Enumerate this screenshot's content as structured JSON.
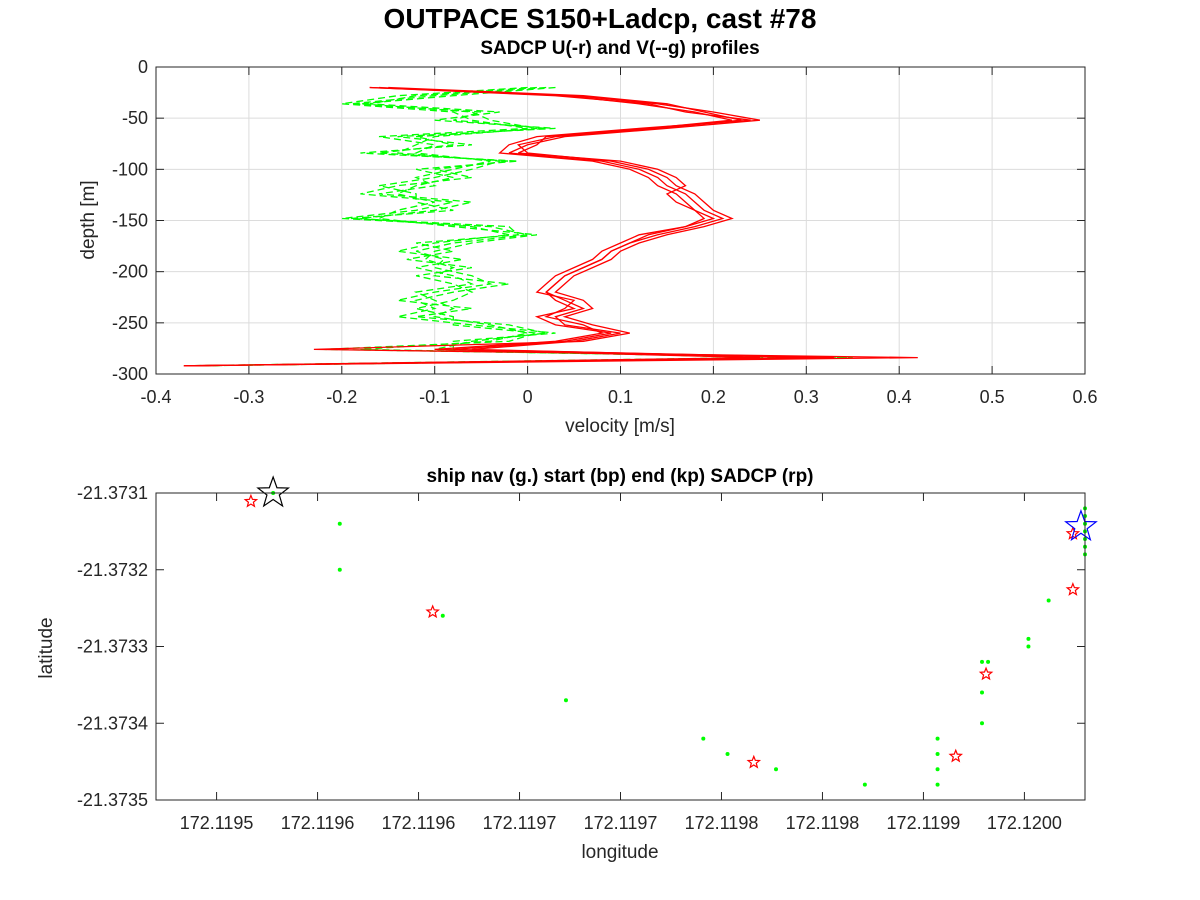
{
  "figure": {
    "title": "OUTPACE S150+Ladcp, cast #78"
  },
  "chart_data": [
    {
      "type": "line",
      "title": "SADCP U(-r) and V(--g) profiles",
      "xlabel": "velocity [m/s]",
      "ylabel": "depth [m]",
      "xlim": [
        -0.4,
        0.6
      ],
      "ylim": [
        -300,
        0
      ],
      "xticks": [
        -0.4,
        -0.3,
        -0.2,
        -0.1,
        0,
        0.1,
        0.2,
        0.3,
        0.4,
        0.5,
        0.6
      ],
      "xtick_labels": [
        "-0.4",
        "-0.3",
        "-0.2",
        "-0.1",
        "0",
        "0.1",
        "0.2",
        "0.3",
        "0.4",
        "0.5",
        "0.6"
      ],
      "yticks": [
        0,
        -50,
        -100,
        -150,
        -200,
        -250,
        -300
      ],
      "ytick_labels": [
        "0",
        "-50",
        "-100",
        "-150",
        "-200",
        "-250",
        "-300"
      ],
      "grid": true,
      "depths": [
        -20,
        -28,
        -36,
        -44,
        -52,
        -60,
        -68,
        -76,
        -84,
        -92,
        -100,
        -108,
        -116,
        -124,
        -132,
        -140,
        -148,
        -156,
        -164,
        -172,
        -180,
        -188,
        -196,
        -204,
        -212,
        -220,
        -228,
        -236,
        -244,
        -252,
        -260,
        -268,
        -276,
        -284,
        -292
      ],
      "series": [
        {
          "component": "U",
          "color": "#ff0000",
          "dash": "solid",
          "profiles": [
            [
              -0.17,
              0.05,
              0.14,
              0.2,
              0.25,
              0.15,
              0.04,
              0.0,
              -0.02,
              0.08,
              0.12,
              0.14,
              0.15,
              0.17,
              0.18,
              0.19,
              0.21,
              0.18,
              0.14,
              0.11,
              0.09,
              0.08,
              0.06,
              0.04,
              0.03,
              0.02,
              0.04,
              0.06,
              0.03,
              0.04,
              0.1,
              0.05,
              -0.06,
              0.3,
              -0.37
            ],
            [
              -0.16,
              0.04,
              0.12,
              0.18,
              0.22,
              0.13,
              0.02,
              0.01,
              -0.01,
              0.1,
              0.14,
              0.16,
              0.17,
              0.15,
              0.16,
              0.18,
              0.19,
              0.17,
              0.12,
              0.1,
              0.08,
              0.07,
              0.05,
              0.03,
              0.02,
              0.01,
              0.05,
              0.04,
              0.02,
              0.06,
              0.08,
              0.03,
              -0.1,
              0.25,
              -0.36
            ],
            [
              -0.15,
              0.06,
              0.15,
              0.19,
              0.23,
              0.14,
              0.03,
              -0.01,
              0.0,
              0.09,
              0.13,
              0.15,
              0.16,
              0.18,
              0.19,
              0.2,
              0.22,
              0.19,
              0.15,
              0.12,
              0.1,
              0.09,
              0.07,
              0.05,
              0.04,
              0.03,
              0.06,
              0.07,
              0.04,
              0.07,
              0.11,
              0.06,
              -0.23,
              0.42,
              -0.37
            ],
            [
              -0.17,
              0.03,
              0.13,
              0.17,
              0.24,
              0.12,
              0.01,
              -0.02,
              -0.03,
              0.07,
              0.11,
              0.13,
              0.14,
              0.16,
              0.17,
              0.18,
              0.2,
              0.17,
              0.13,
              0.11,
              0.09,
              0.08,
              0.06,
              0.04,
              0.03,
              0.02,
              0.03,
              0.05,
              0.01,
              0.03,
              0.09,
              0.04,
              -0.08,
              0.33,
              -0.37
            ]
          ]
        },
        {
          "component": "V",
          "color": "#00ff00",
          "dash": "dashed",
          "profiles": [
            [
              0.02,
              -0.1,
              -0.19,
              -0.05,
              -0.08,
              0.02,
              -0.12,
              -0.08,
              -0.16,
              -0.02,
              -0.1,
              -0.06,
              -0.14,
              -0.18,
              -0.08,
              -0.12,
              -0.2,
              -0.04,
              0.0,
              -0.08,
              -0.12,
              -0.09,
              -0.1,
              -0.06,
              -0.04,
              -0.1,
              -0.14,
              -0.06,
              -0.12,
              -0.02,
              0.02,
              -0.06,
              -0.1,
              0.33,
              -0.36
            ],
            [
              0.0,
              -0.14,
              -0.2,
              -0.08,
              -0.06,
              0.0,
              -0.16,
              -0.1,
              -0.12,
              -0.04,
              -0.08,
              -0.12,
              -0.1,
              -0.16,
              -0.06,
              -0.1,
              -0.18,
              -0.06,
              -0.02,
              -0.1,
              -0.14,
              -0.07,
              -0.12,
              -0.08,
              -0.06,
              -0.12,
              -0.1,
              -0.08,
              -0.1,
              -0.04,
              0.0,
              -0.04,
              -0.18,
              0.3,
              -0.36
            ],
            [
              0.01,
              -0.12,
              -0.17,
              -0.03,
              -0.1,
              0.03,
              -0.14,
              -0.06,
              -0.18,
              -0.01,
              -0.12,
              -0.08,
              -0.12,
              -0.14,
              -0.1,
              -0.14,
              -0.16,
              -0.08,
              0.01,
              -0.06,
              -0.1,
              -0.11,
              -0.08,
              -0.1,
              -0.02,
              -0.08,
              -0.12,
              -0.1,
              -0.14,
              -0.06,
              0.03,
              -0.08,
              -0.08,
              0.25,
              -0.37
            ],
            [
              0.03,
              -0.08,
              -0.18,
              -0.06,
              -0.04,
              0.01,
              -0.1,
              -0.12,
              -0.14,
              -0.03,
              -0.06,
              -0.1,
              -0.16,
              -0.12,
              -0.12,
              -0.08,
              -0.19,
              -0.02,
              -0.01,
              -0.12,
              -0.08,
              -0.13,
              -0.06,
              -0.12,
              -0.08,
              -0.06,
              -0.08,
              -0.12,
              -0.08,
              -0.08,
              0.01,
              -0.02,
              -0.22,
              0.35,
              -0.36
            ]
          ]
        }
      ]
    },
    {
      "type": "scatter",
      "title": "ship nav (g.) start (bp) end (kp) SADCP (rp)",
      "xlabel": "longitude",
      "ylabel": "latitude",
      "xlim": [
        172.11952,
        172.11998
      ],
      "ylim": [
        -21.3735,
        -21.3731
      ],
      "xticks": [
        172.11955,
        172.1196,
        172.11965,
        172.1197,
        172.11975,
        172.1198,
        172.11985,
        172.1199,
        172.11995
      ],
      "xtick_labels": [
        "172.1195",
        "172.1196",
        "172.1196",
        "172.1197",
        "172.1197",
        "172.1198",
        "172.1198",
        "172.1199",
        "172.1200"
      ],
      "yticks": [
        -21.3731,
        -21.3732,
        -21.3733,
        -21.3734,
        -21.3735
      ],
      "ytick_labels": [
        "-21.3731",
        "-21.3732",
        "-21.3733",
        "-21.3734",
        "-21.3735"
      ],
      "grid": false,
      "ship_nav": {
        "color": "#00ff00",
        "marker": "dot",
        "points": [
          [
            172.119578,
            -21.3731
          ],
          [
            172.119611,
            -21.37314
          ],
          [
            172.119611,
            -21.3732
          ],
          [
            172.119662,
            -21.37326
          ],
          [
            172.119723,
            -21.37337
          ],
          [
            172.119791,
            -21.37342
          ],
          [
            172.119803,
            -21.37344
          ],
          [
            172.119827,
            -21.37346
          ],
          [
            172.119871,
            -21.37348
          ],
          [
            172.119907,
            -21.37342
          ],
          [
            172.119907,
            -21.37344
          ],
          [
            172.119907,
            -21.37346
          ],
          [
            172.119907,
            -21.37348
          ],
          [
            172.119929,
            -21.3734
          ],
          [
            172.119929,
            -21.37336
          ],
          [
            172.119932,
            -21.37332
          ],
          [
            172.119929,
            -21.37332
          ],
          [
            172.119952,
            -21.37329
          ],
          [
            172.119952,
            -21.3733
          ],
          [
            172.119962,
            -21.37324
          ],
          [
            172.11998,
            -21.37312
          ],
          [
            172.11998,
            -21.37313
          ],
          [
            172.11998,
            -21.37314
          ],
          [
            172.11998,
            -21.37315
          ],
          [
            172.11998,
            -21.37316
          ],
          [
            172.11998,
            -21.37317
          ],
          [
            172.11998,
            -21.37318
          ]
        ]
      },
      "start": {
        "color": "#000000",
        "marker": "star",
        "point": [
          172.119578,
          -21.3731
        ]
      },
      "end": {
        "color": "#0000ff",
        "marker": "star",
        "point": [
          172.119978,
          -21.373144
        ]
      },
      "sadcp": {
        "color": "#ff0000",
        "marker": "star",
        "points": [
          [
            172.119567,
            -21.373111
          ],
          [
            172.119657,
            -21.373255
          ],
          [
            172.119816,
            -21.373451
          ],
          [
            172.119916,
            -21.373443
          ],
          [
            172.119931,
            -21.373336
          ],
          [
            172.119974,
            -21.373153
          ],
          [
            172.119974,
            -21.373226
          ]
        ]
      }
    }
  ]
}
